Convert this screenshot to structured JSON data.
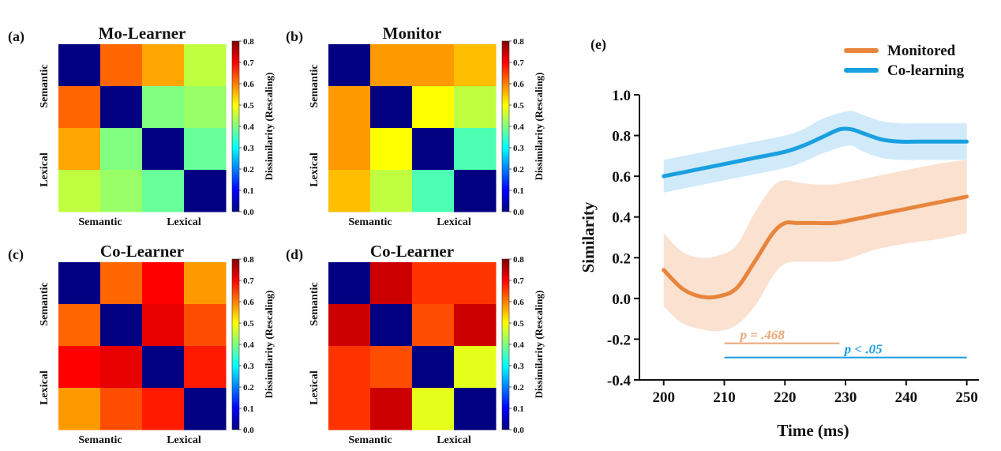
{
  "colorbar": {
    "label": "Dissimilarity (Rescaling)",
    "ticks": [
      "0.0",
      "0.1",
      "0.2",
      "0.3",
      "0.4",
      "0.5",
      "0.6",
      "0.7",
      "0.8"
    ]
  },
  "chart_data": [
    {
      "type": "heatmap",
      "panel": "(a)",
      "title": "Mo-Learner",
      "x_labels": [
        "Semantic",
        "Lexical"
      ],
      "y_labels": [
        "Semantic",
        "Lexical"
      ],
      "vmin": 0.0,
      "vmax": 0.8,
      "matrix": [
        [
          0.0,
          0.62,
          0.57,
          0.45
        ],
        [
          0.62,
          0.0,
          0.4,
          0.42
        ],
        [
          0.57,
          0.4,
          0.0,
          0.38
        ],
        [
          0.45,
          0.42,
          0.38,
          0.0
        ]
      ]
    },
    {
      "type": "heatmap",
      "panel": "(b)",
      "title": "Monitor",
      "x_labels": [
        "Semantic",
        "Lexical"
      ],
      "y_labels": [
        "Semantic",
        "Lexical"
      ],
      "vmin": 0.0,
      "vmax": 0.8,
      "matrix": [
        [
          0.0,
          0.58,
          0.58,
          0.55
        ],
        [
          0.58,
          0.0,
          0.5,
          0.45
        ],
        [
          0.58,
          0.5,
          0.0,
          0.36
        ],
        [
          0.55,
          0.45,
          0.36,
          0.0
        ]
      ]
    },
    {
      "type": "heatmap",
      "panel": "(c)",
      "title": "Co-Learner",
      "x_labels": [
        "Semantic",
        "Lexical"
      ],
      "y_labels": [
        "Semantic",
        "Lexical"
      ],
      "vmin": 0.0,
      "vmax": 0.8,
      "matrix": [
        [
          0.0,
          0.62,
          0.7,
          0.58
        ],
        [
          0.62,
          0.0,
          0.72,
          0.64
        ],
        [
          0.7,
          0.72,
          0.0,
          0.68
        ],
        [
          0.58,
          0.64,
          0.68,
          0.0
        ]
      ]
    },
    {
      "type": "heatmap",
      "panel": "(d)",
      "title": "Co-Learner",
      "x_labels": [
        "Semantic",
        "Lexical"
      ],
      "y_labels": [
        "Semantic",
        "Lexical"
      ],
      "vmin": 0.0,
      "vmax": 0.8,
      "matrix": [
        [
          0.0,
          0.74,
          0.66,
          0.66
        ],
        [
          0.74,
          0.0,
          0.64,
          0.74
        ],
        [
          0.66,
          0.64,
          0.0,
          0.48
        ],
        [
          0.66,
          0.74,
          0.48,
          0.0
        ]
      ]
    },
    {
      "type": "line",
      "panel": "(e)",
      "xlabel": "Time (ms)",
      "ylabel": "Similarity",
      "xlim": [
        196,
        252
      ],
      "ylim": [
        -0.4,
        1.0
      ],
      "xticks": [
        200,
        210,
        220,
        230,
        240,
        250
      ],
      "yticks": [
        "-0.4",
        "-0.2",
        "0.0",
        "0.2",
        "0.4",
        "0.6",
        "0.8",
        "1.0"
      ],
      "legend_position": "top-right",
      "series": [
        {
          "name": "Monitored",
          "color": "#E8853C",
          "band_color": "#F9DCC8",
          "x": [
            200,
            203,
            206,
            209,
            212,
            215,
            218,
            220,
            222,
            225,
            228,
            230,
            235,
            240,
            245,
            250
          ],
          "y": [
            0.14,
            0.05,
            0.01,
            0.01,
            0.05,
            0.18,
            0.32,
            0.37,
            0.37,
            0.37,
            0.37,
            0.38,
            0.41,
            0.44,
            0.47,
            0.5
          ],
          "upper": [
            0.32,
            0.23,
            0.2,
            0.21,
            0.26,
            0.42,
            0.55,
            0.58,
            0.57,
            0.56,
            0.56,
            0.57,
            0.6,
            0.63,
            0.66,
            0.68
          ],
          "lower": [
            -0.04,
            -0.12,
            -0.15,
            -0.16,
            -0.13,
            -0.04,
            0.11,
            0.17,
            0.18,
            0.18,
            0.18,
            0.19,
            0.24,
            0.27,
            0.29,
            0.32
          ]
        },
        {
          "name": "Co-learning",
          "color": "#1A9FE0",
          "band_color": "#C8E6F8",
          "x": [
            200,
            205,
            210,
            215,
            220,
            223,
            226,
            229,
            231,
            233,
            236,
            239,
            242,
            246,
            250
          ],
          "y": [
            0.6,
            0.63,
            0.66,
            0.69,
            0.72,
            0.75,
            0.79,
            0.83,
            0.83,
            0.81,
            0.78,
            0.77,
            0.77,
            0.77,
            0.77
          ],
          "upper": [
            0.68,
            0.71,
            0.74,
            0.77,
            0.8,
            0.83,
            0.88,
            0.91,
            0.92,
            0.9,
            0.87,
            0.86,
            0.86,
            0.86,
            0.86
          ],
          "lower": [
            0.52,
            0.55,
            0.58,
            0.61,
            0.64,
            0.67,
            0.71,
            0.74,
            0.75,
            0.72,
            0.69,
            0.68,
            0.68,
            0.68,
            0.68
          ]
        }
      ],
      "significance": [
        {
          "label": "p = .468",
          "x_start": 210,
          "x_end": 229,
          "y": -0.22,
          "color": "#E8A878"
        },
        {
          "label": "p < .05",
          "x_start": 210,
          "x_end": 250,
          "y": -0.29,
          "color": "#1A9FE0"
        }
      ]
    }
  ]
}
